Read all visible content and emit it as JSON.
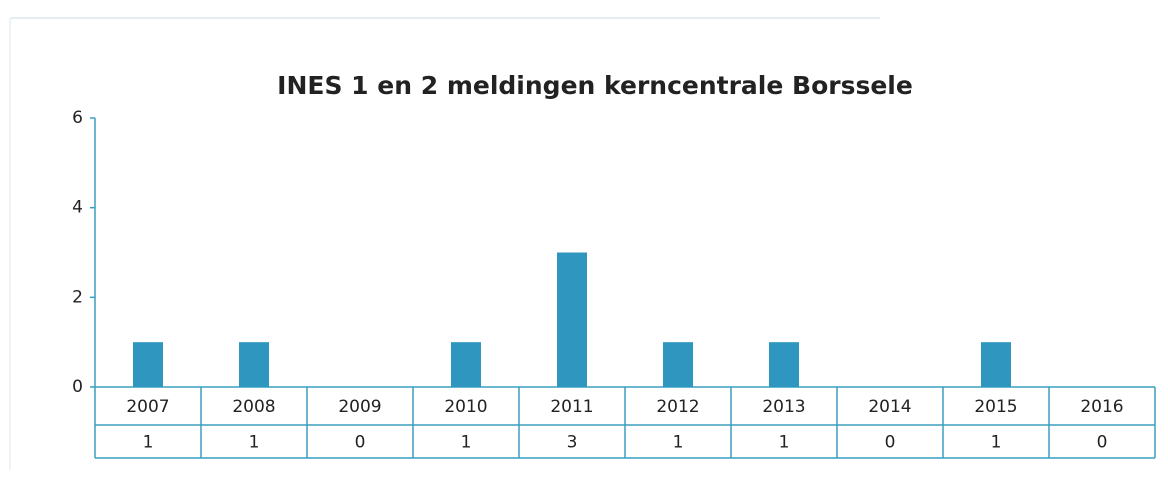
{
  "chart_data": {
    "type": "bar",
    "title": "INES 1 en 2 meldingen kerncentrale Borssele",
    "categories": [
      "2007",
      "2008",
      "2009",
      "2010",
      "2011",
      "2012",
      "2013",
      "2014",
      "2015",
      "2016"
    ],
    "values": [
      1,
      1,
      0,
      1,
      3,
      1,
      1,
      0,
      1,
      0
    ],
    "color": "#2f96bf",
    "ylim": [
      0,
      6
    ],
    "yticks": [
      0,
      2,
      4,
      6
    ],
    "grid": false
  }
}
